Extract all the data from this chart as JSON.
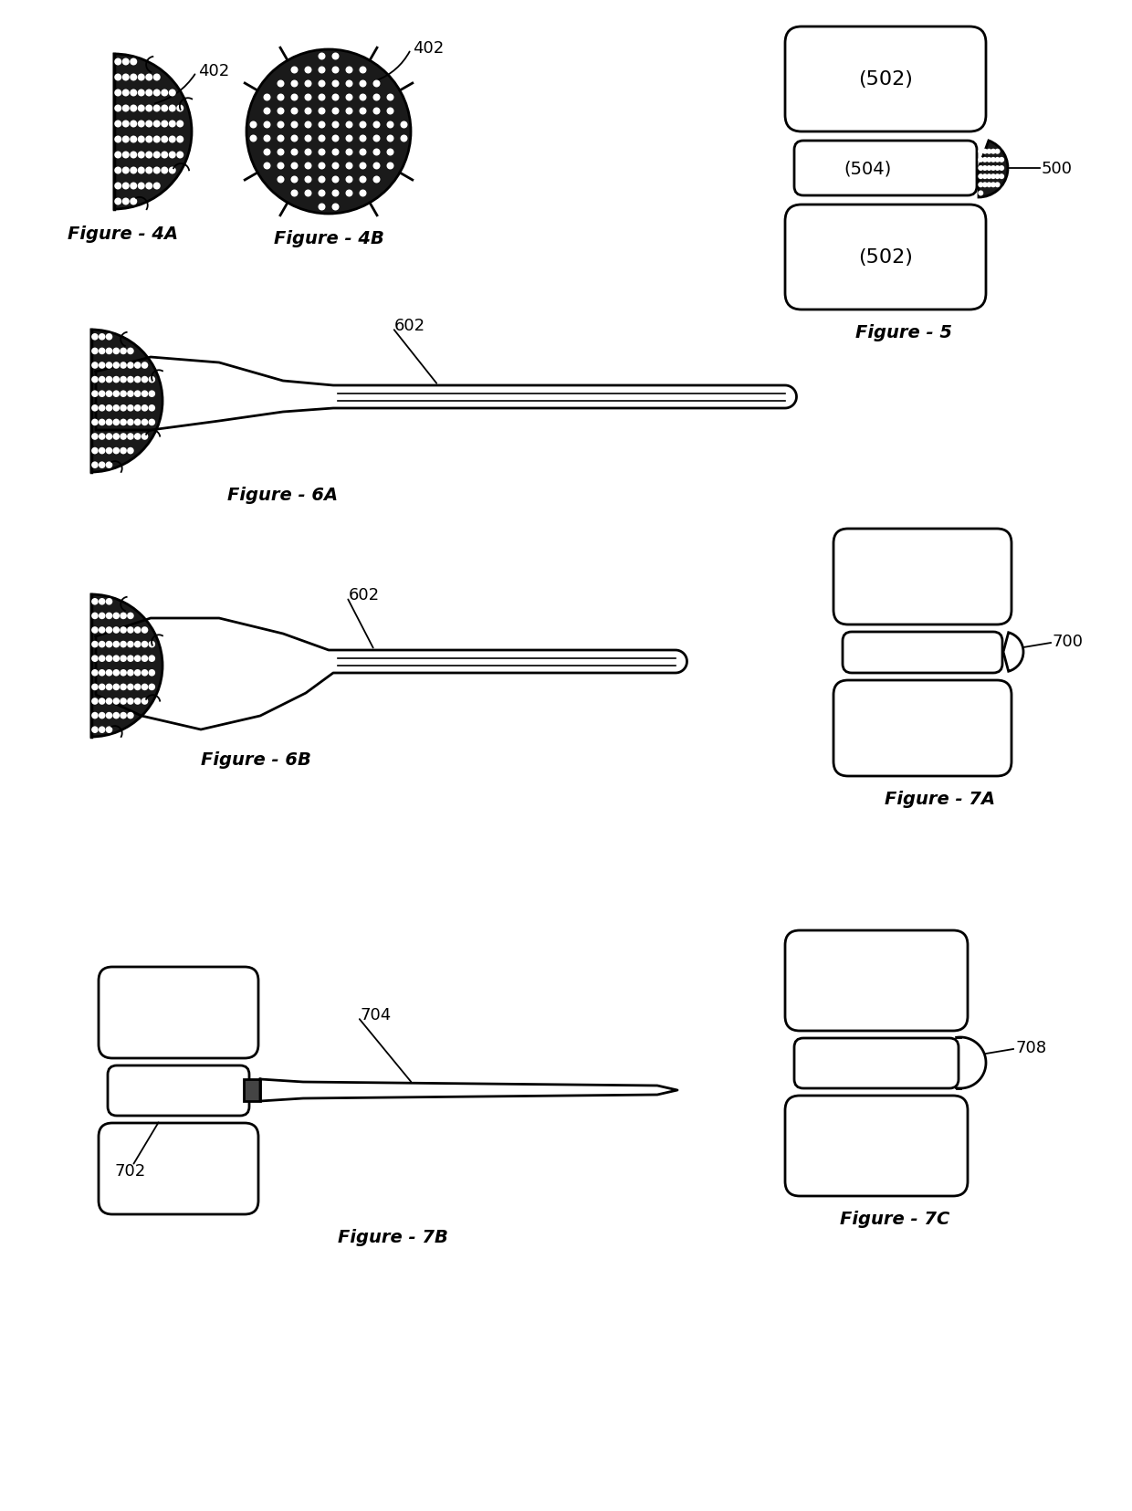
{
  "bg_color": "#ffffff",
  "line_color": "#000000",
  "fig_labels": {
    "fig4A": "Figure - 4A",
    "fig4B": "Figure - 4B",
    "fig5": "Figure - 5",
    "fig6A": "Figure - 6A",
    "fig6B": "Figure - 6B",
    "fig7A": "Figure - 7A",
    "fig7B": "Figure - 7B",
    "fig7C": "Figure - 7C"
  },
  "ref_numbers": {
    "r402_4A": "402",
    "r402_4B": "402",
    "r500": "500",
    "r502_top": "(502)",
    "r502_bot": "(502)",
    "r504": "(504)",
    "r602_6A": "602",
    "r602_6B": "602",
    "r700": "700",
    "r702": "702",
    "r704": "704",
    "r708": "708"
  },
  "lw": 2.0,
  "dark_fill": "#1a1a1a",
  "white_fill": "#ffffff",
  "dot_color": "#ffffff"
}
